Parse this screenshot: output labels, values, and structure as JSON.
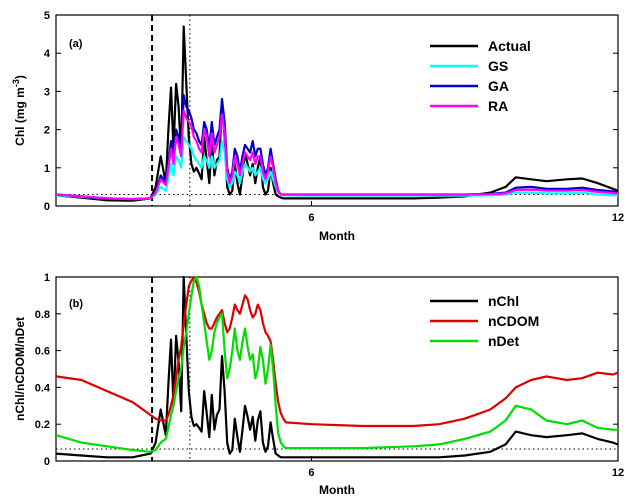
{
  "chart_data": [
    {
      "type": "line",
      "panel_label": "(a)",
      "xlabel": "Month",
      "ylabel": "Chl (mg m",
      "ylabel_sup": "-3",
      "ylabel_close": ")",
      "xlim": [
        1,
        12
      ],
      "ylim": [
        0,
        5
      ],
      "xticks": [
        6,
        12
      ],
      "xtick_labels": [
        "6",
        "12"
      ],
      "yticks": [
        0,
        1,
        2,
        3,
        4,
        5
      ],
      "ytick_labels": [
        "0",
        "1",
        "2",
        "3",
        "4",
        "5"
      ],
      "grid": false,
      "legend_position": "top-right",
      "vlines": [
        {
          "x": 2.88,
          "style": "dashed"
        },
        {
          "x": 3.62,
          "style": "dotted"
        }
      ],
      "hline": {
        "y": 0.3,
        "style": "dotted"
      },
      "x": [
        1.0,
        1.5,
        2.0,
        2.5,
        2.85,
        2.95,
        3.05,
        3.15,
        3.2,
        3.25,
        3.3,
        3.35,
        3.4,
        3.45,
        3.5,
        3.55,
        3.6,
        3.65,
        3.7,
        3.75,
        3.8,
        3.85,
        3.9,
        3.95,
        4.0,
        4.05,
        4.1,
        4.15,
        4.2,
        4.25,
        4.3,
        4.35,
        4.4,
        4.45,
        4.5,
        4.55,
        4.6,
        4.65,
        4.7,
        4.75,
        4.8,
        4.85,
        4.9,
        4.95,
        5.0,
        5.05,
        5.1,
        5.15,
        5.2,
        5.25,
        5.3,
        5.35,
        5.4,
        5.45,
        5.5,
        6.0,
        7.0,
        8.0,
        8.5,
        9.0,
        9.5,
        9.8,
        10.0,
        10.3,
        10.6,
        11.0,
        11.3,
        11.6,
        11.9,
        12.0
      ],
      "series": [
        {
          "name": "Actual",
          "color": "#000000",
          "values": [
            0.28,
            0.22,
            0.15,
            0.14,
            0.2,
            0.5,
            1.3,
            0.6,
            2.0,
            3.1,
            1.5,
            3.2,
            2.6,
            1.3,
            4.7,
            3.2,
            1.8,
            1.1,
            0.9,
            1.0,
            0.85,
            0.7,
            1.8,
            1.2,
            0.6,
            1.7,
            0.8,
            1.2,
            1.3,
            2.7,
            1.8,
            0.5,
            0.3,
            0.4,
            1.1,
            0.6,
            0.3,
            0.8,
            1.4,
            1.1,
            0.8,
            1.1,
            0.6,
            1.0,
            1.3,
            0.5,
            0.3,
            0.4,
            1.0,
            0.6,
            0.3,
            0.25,
            0.22,
            0.2,
            0.2,
            0.2,
            0.2,
            0.2,
            0.22,
            0.25,
            0.35,
            0.5,
            0.75,
            0.7,
            0.65,
            0.7,
            0.72,
            0.6,
            0.45,
            0.4
          ]
        },
        {
          "name": "GS",
          "color": "#00ffff",
          "values": [
            0.28,
            0.24,
            0.2,
            0.18,
            0.2,
            0.3,
            0.5,
            0.4,
            0.7,
            1.1,
            0.8,
            1.3,
            1.2,
            1.0,
            1.8,
            1.7,
            1.6,
            1.5,
            1.3,
            1.2,
            1.1,
            1.0,
            1.3,
            1.2,
            1.0,
            1.3,
            1.0,
            1.1,
            1.2,
            1.7,
            1.4,
            0.7,
            0.5,
            0.6,
            0.9,
            0.8,
            0.6,
            0.9,
            1.1,
            1.0,
            0.9,
            1.0,
            0.8,
            0.9,
            1.0,
            0.7,
            0.6,
            0.7,
            0.9,
            0.7,
            0.5,
            0.35,
            0.3,
            0.28,
            0.28,
            0.27,
            0.27,
            0.27,
            0.27,
            0.27,
            0.28,
            0.3,
            0.35,
            0.35,
            0.33,
            0.33,
            0.35,
            0.3,
            0.28,
            0.28
          ]
        },
        {
          "name": "GA",
          "color": "#0000cc",
          "values": [
            0.3,
            0.25,
            0.2,
            0.18,
            0.2,
            0.35,
            0.8,
            0.6,
            1.1,
            1.7,
            1.2,
            2.0,
            1.8,
            1.4,
            2.9,
            2.6,
            2.5,
            2.3,
            2.0,
            1.9,
            1.7,
            1.6,
            2.2,
            2.0,
            1.5,
            2.2,
            1.6,
            1.8,
            2.0,
            2.8,
            2.2,
            1.0,
            0.7,
            0.9,
            1.5,
            1.3,
            0.9,
            1.3,
            1.6,
            1.5,
            1.4,
            1.7,
            1.3,
            1.5,
            1.5,
            1.1,
            0.8,
            1.0,
            1.5,
            1.1,
            0.7,
            0.4,
            0.3,
            0.3,
            0.3,
            0.3,
            0.3,
            0.3,
            0.3,
            0.3,
            0.32,
            0.35,
            0.48,
            0.5,
            0.45,
            0.45,
            0.48,
            0.42,
            0.38,
            0.36
          ]
        },
        {
          "name": "RA",
          "color": "#ff00ff",
          "values": [
            0.3,
            0.25,
            0.2,
            0.18,
            0.2,
            0.35,
            0.7,
            0.55,
            1.0,
            1.5,
            1.1,
            1.8,
            1.6,
            1.3,
            2.5,
            2.3,
            2.2,
            2.1,
            1.8,
            1.7,
            1.5,
            1.4,
            2.0,
            1.8,
            1.3,
            1.9,
            1.4,
            1.6,
            1.8,
            2.4,
            1.9,
            0.9,
            0.6,
            0.8,
            1.3,
            1.1,
            0.8,
            1.1,
            1.4,
            1.3,
            1.2,
            1.4,
            1.1,
            1.3,
            1.3,
            0.9,
            0.7,
            0.9,
            1.3,
            1.0,
            0.6,
            0.38,
            0.3,
            0.3,
            0.3,
            0.3,
            0.3,
            0.3,
            0.3,
            0.3,
            0.31,
            0.33,
            0.42,
            0.43,
            0.4,
            0.4,
            0.42,
            0.37,
            0.34,
            0.33
          ]
        }
      ]
    },
    {
      "type": "line",
      "panel_label": "(b)",
      "xlabel": "Month",
      "ylabel": "nChl/nCDOM/nDet",
      "xlim": [
        1,
        12
      ],
      "ylim": [
        0,
        1
      ],
      "xticks": [
        6,
        12
      ],
      "xtick_labels": [
        "6",
        "12"
      ],
      "yticks": [
        0,
        0.2,
        0.4,
        0.6,
        0.8,
        1
      ],
      "ytick_labels": [
        "0",
        "0.2",
        "0.4",
        "0.6",
        "0.8",
        "1"
      ],
      "grid": false,
      "legend_position": "top-right",
      "vlines": [
        {
          "x": 2.88,
          "style": "dashed"
        },
        {
          "x": 3.62,
          "style": "dotted"
        }
      ],
      "hline": {
        "y": 0.065,
        "style": "dotted"
      },
      "x": [
        1.0,
        1.5,
        2.0,
        2.5,
        2.85,
        2.95,
        3.05,
        3.15,
        3.2,
        3.25,
        3.3,
        3.35,
        3.4,
        3.45,
        3.5,
        3.55,
        3.6,
        3.65,
        3.7,
        3.75,
        3.8,
        3.85,
        3.9,
        3.95,
        4.0,
        4.05,
        4.1,
        4.15,
        4.2,
        4.25,
        4.3,
        4.35,
        4.4,
        4.45,
        4.5,
        4.55,
        4.6,
        4.65,
        4.7,
        4.75,
        4.8,
        4.85,
        4.9,
        4.95,
        5.0,
        5.05,
        5.1,
        5.15,
        5.2,
        5.25,
        5.3,
        5.35,
        5.4,
        5.45,
        5.5,
        6.0,
        7.0,
        8.0,
        8.5,
        9.0,
        9.5,
        9.8,
        10.0,
        10.3,
        10.6,
        11.0,
        11.3,
        11.6,
        11.9,
        12.0
      ],
      "series": [
        {
          "name": "nChl",
          "color": "#000000",
          "values": [
            0.04,
            0.03,
            0.02,
            0.02,
            0.04,
            0.1,
            0.28,
            0.14,
            0.42,
            0.66,
            0.3,
            0.68,
            0.54,
            0.27,
            1.0,
            0.68,
            0.38,
            0.24,
            0.19,
            0.2,
            0.18,
            0.16,
            0.38,
            0.26,
            0.13,
            0.36,
            0.17,
            0.25,
            0.28,
            0.57,
            0.38,
            0.1,
            0.04,
            0.06,
            0.23,
            0.13,
            0.05,
            0.17,
            0.3,
            0.24,
            0.17,
            0.24,
            0.11,
            0.22,
            0.27,
            0.1,
            0.05,
            0.08,
            0.21,
            0.12,
            0.04,
            0.03,
            0.02,
            0.02,
            0.02,
            0.02,
            0.02,
            0.02,
            0.02,
            0.03,
            0.05,
            0.09,
            0.16,
            0.14,
            0.13,
            0.14,
            0.15,
            0.12,
            0.1,
            0.09
          ]
        },
        {
          "name": "nCDOM",
          "color": "#dd0000",
          "values": [
            0.46,
            0.44,
            0.38,
            0.32,
            0.25,
            0.23,
            0.22,
            0.22,
            0.25,
            0.3,
            0.36,
            0.45,
            0.55,
            0.62,
            0.75,
            0.85,
            0.95,
            0.98,
            1.0,
            0.97,
            0.92,
            0.85,
            0.8,
            0.75,
            0.72,
            0.72,
            0.75,
            0.78,
            0.8,
            0.82,
            0.75,
            0.7,
            0.72,
            0.78,
            0.85,
            0.82,
            0.8,
            0.85,
            0.9,
            0.88,
            0.82,
            0.78,
            0.8,
            0.85,
            0.82,
            0.75,
            0.7,
            0.68,
            0.65,
            0.55,
            0.42,
            0.32,
            0.26,
            0.23,
            0.21,
            0.2,
            0.19,
            0.19,
            0.2,
            0.23,
            0.28,
            0.34,
            0.4,
            0.44,
            0.46,
            0.44,
            0.45,
            0.48,
            0.47,
            0.48
          ]
        },
        {
          "name": "nDet",
          "color": "#00dd00",
          "values": [
            0.14,
            0.1,
            0.08,
            0.06,
            0.05,
            0.06,
            0.1,
            0.12,
            0.18,
            0.25,
            0.3,
            0.38,
            0.45,
            0.5,
            0.62,
            0.7,
            0.8,
            0.9,
            0.98,
            1.0,
            0.95,
            0.85,
            0.75,
            0.65,
            0.55,
            0.6,
            0.7,
            0.75,
            0.78,
            0.8,
            0.6,
            0.45,
            0.5,
            0.6,
            0.72,
            0.6,
            0.55,
            0.65,
            0.72,
            0.62,
            0.55,
            0.58,
            0.45,
            0.5,
            0.62,
            0.55,
            0.42,
            0.5,
            0.63,
            0.5,
            0.3,
            0.15,
            0.1,
            0.08,
            0.07,
            0.07,
            0.07,
            0.08,
            0.09,
            0.12,
            0.16,
            0.22,
            0.3,
            0.28,
            0.22,
            0.2,
            0.22,
            0.18,
            0.17,
            0.17
          ]
        }
      ]
    }
  ]
}
